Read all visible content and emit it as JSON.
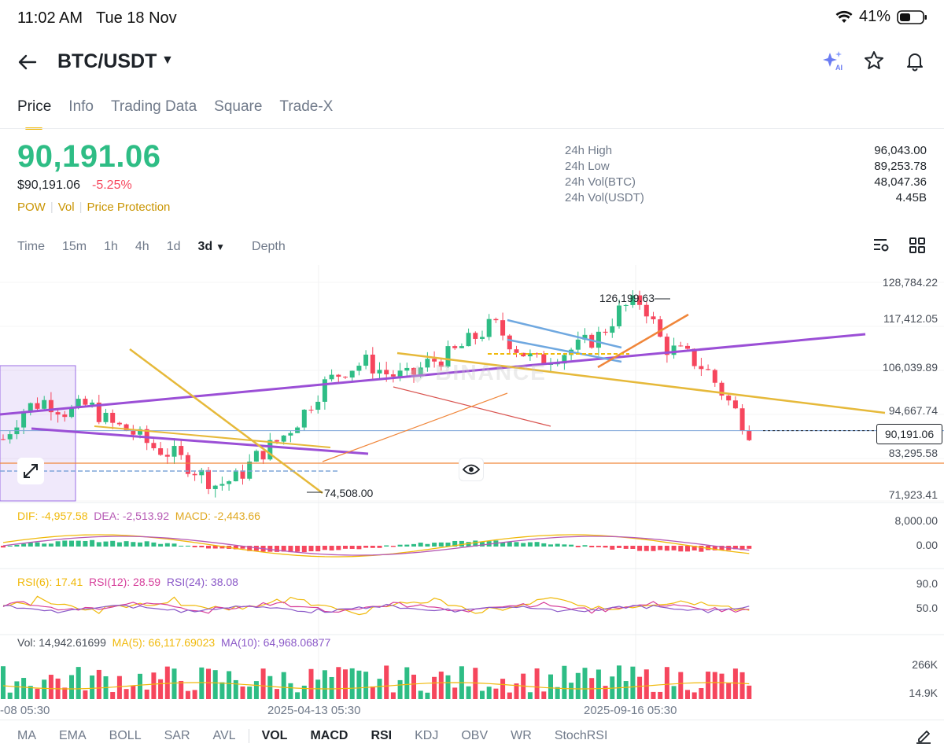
{
  "status": {
    "time": "11:02 AM",
    "date": "Tue 18 Nov",
    "battery": "41%"
  },
  "header": {
    "pair": "BTC/USDT",
    "icons": [
      "back-arrow-icon",
      "ai-sparkle-icon",
      "star-icon",
      "bell-icon"
    ]
  },
  "tabs": [
    "Price",
    "Info",
    "Trading Data",
    "Square",
    "Trade-X"
  ],
  "price": {
    "last": "90,191.06",
    "usd": "$90,191.06",
    "change": "-5.25%",
    "tags": [
      "POW",
      "Vol",
      "Price Protection"
    ]
  },
  "stats": [
    {
      "label": "24h High",
      "value": "96,043.00"
    },
    {
      "label": "24h Low",
      "value": "89,253.78"
    },
    {
      "label": "24h Vol(BTC)",
      "value": "48,047.36"
    },
    {
      "label": "24h Vol(USDT)",
      "value": "4.45B"
    }
  ],
  "timeframes": [
    "Time",
    "15m",
    "1h",
    "4h",
    "1d",
    "3d",
    "Depth"
  ],
  "active_timeframe": "3d",
  "chart": {
    "price_axis": [
      "128,784.22",
      "117,412.05",
      "106,039.89",
      "94,667.74",
      "83,295.58",
      "71,923.41"
    ],
    "current_price_tag": "90,191.06",
    "high_marker": "126,199.63",
    "low_marker": "74,508.00",
    "macd_legend": {
      "dif": "DIF: -4,957.58",
      "dea": "DEA: -2,513.92",
      "macd": "MACD: -2,443.66"
    },
    "macd_axis": [
      "8,000.00",
      "0.00"
    ],
    "rsi_legend": {
      "r6": "RSI(6): 17.41",
      "r12": "RSI(12): 28.59",
      "r24": "RSI(24): 38.08"
    },
    "rsi_axis": [
      "90.0",
      "50.0"
    ],
    "vol_legend": {
      "vol": "Vol: 14,942.61699",
      "ma5": "MA(5): 66,117.69023",
      "ma10": "MA(10): 64,968.06877"
    },
    "vol_axis": [
      "266K",
      "14.9K"
    ],
    "dates": [
      "-08 05:30",
      "2025-04-13 05:30",
      "2025-09-16 05:30"
    ],
    "colors": {
      "up": "#2ebd85",
      "down": "#f6465d",
      "accent": "#f0b90b"
    }
  },
  "chart_data": {
    "type": "candlestick",
    "ylim": [
      71923.41,
      128784.22
    ],
    "high": 126199.63,
    "low": 74508.0,
    "last": 90191.06,
    "series": [
      {
        "values": [
          88000,
          96000,
          98000,
          95000,
          97000,
          92000,
          90000,
          86000,
          84000,
          80000,
          76000,
          78000,
          84000,
          88000,
          94000,
          102000,
          106000,
          108000,
          105000,
          104000,
          108000,
          110000,
          114000,
          118000,
          112000,
          108000,
          110000,
          112000,
          115000,
          122000,
          124000,
          112000,
          110000,
          106000,
          98000,
          90191
        ]
      }
    ]
  },
  "indicators": [
    "MA",
    "EMA",
    "BOLL",
    "SAR",
    "AVL",
    "VOL",
    "MACD",
    "RSI",
    "KDJ",
    "OBV",
    "WR",
    "StochRSI"
  ],
  "active_indicators": [
    "VOL",
    "MACD",
    "RSI"
  ]
}
